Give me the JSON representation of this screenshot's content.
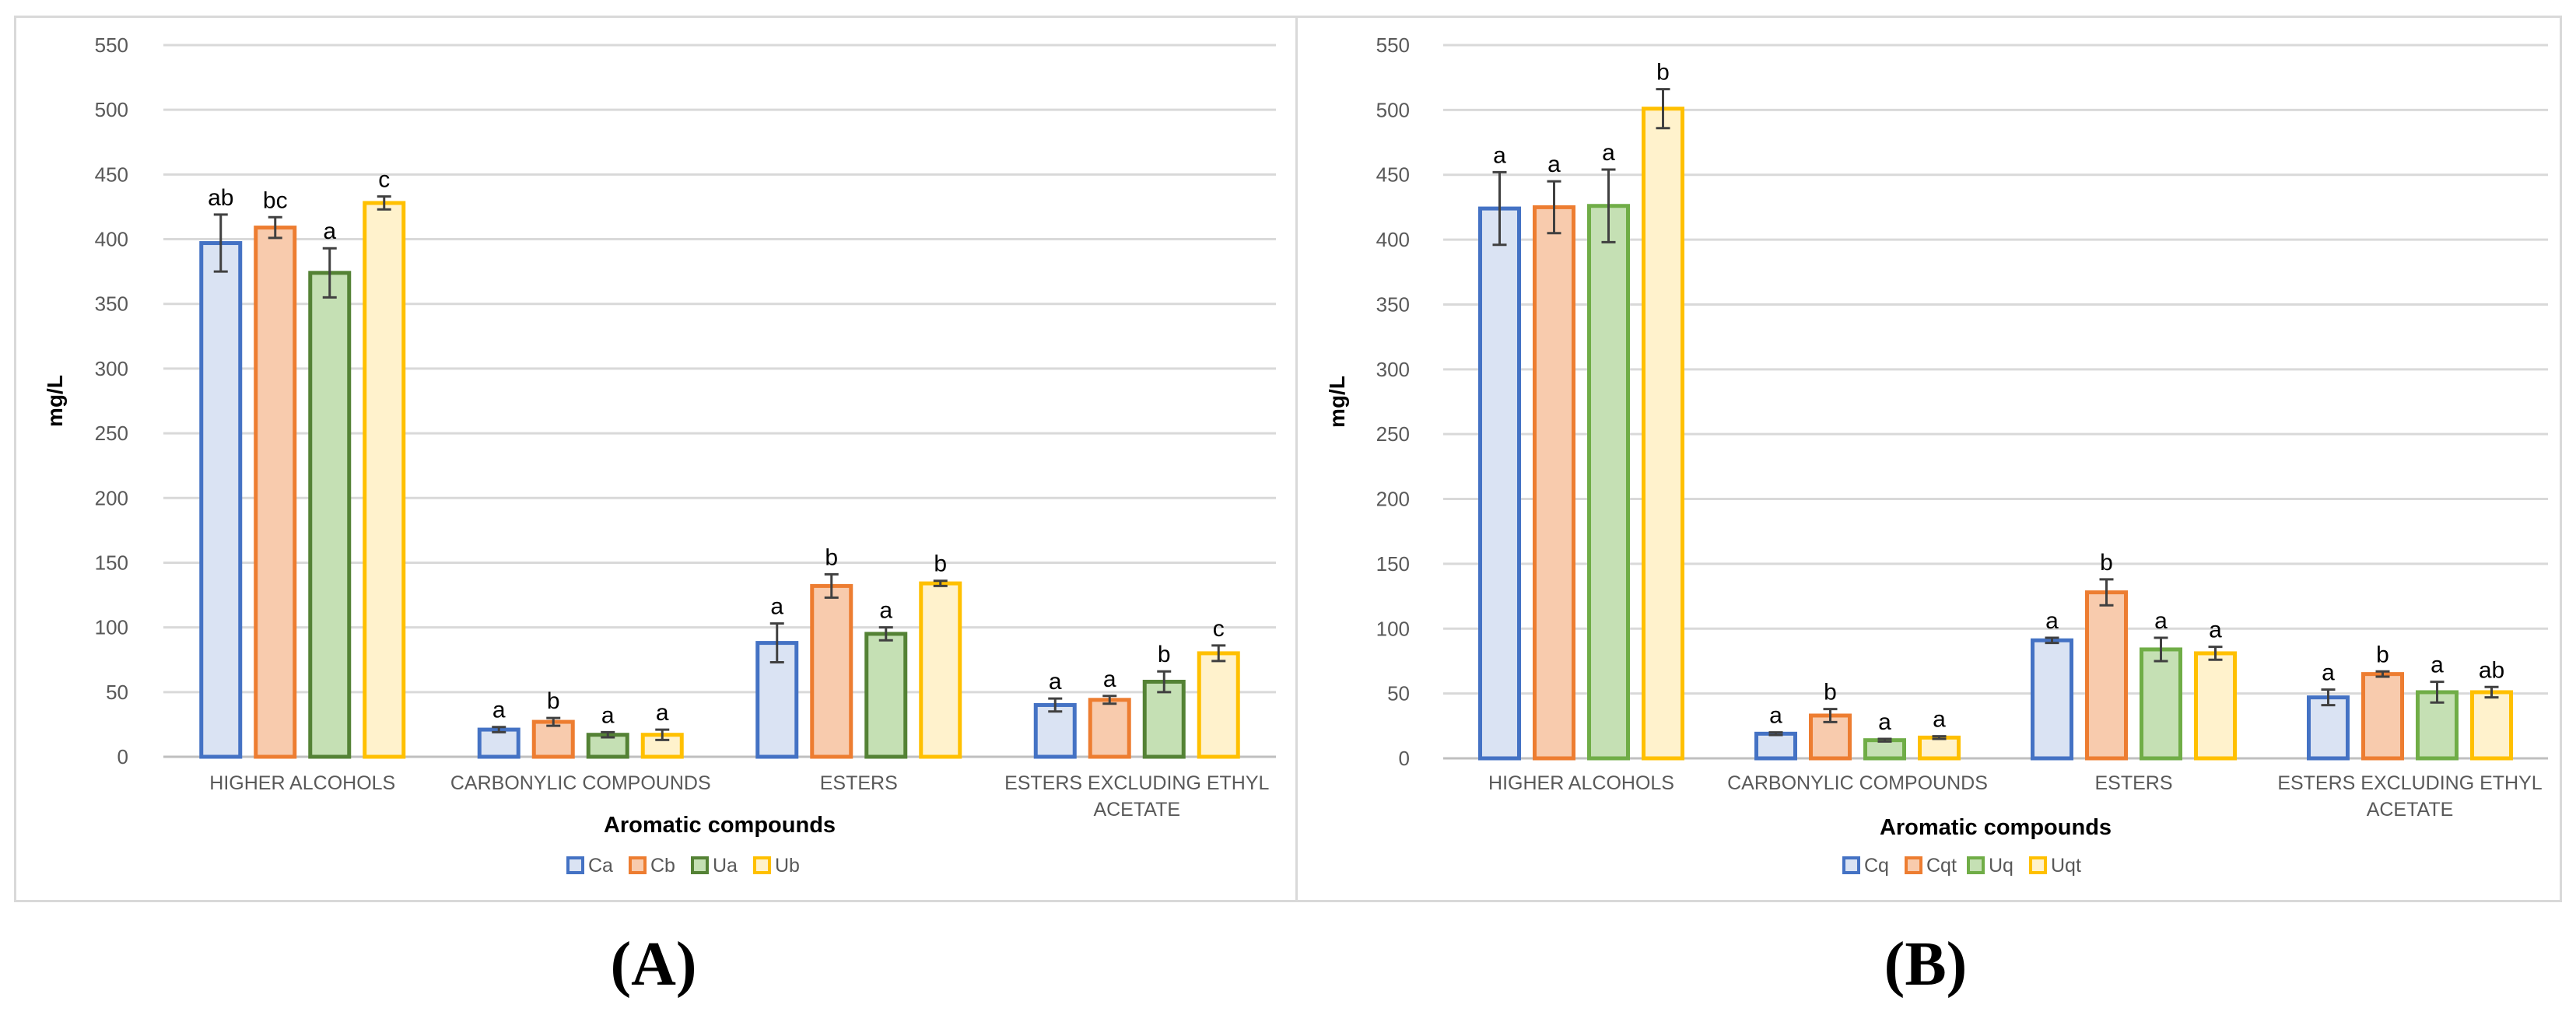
{
  "figure": {
    "panel_labels": [
      "(A)",
      "(B)"
    ]
  },
  "chart_data": [
    {
      "type": "bar",
      "panel": "(A)",
      "title": "",
      "xlabel": "Aromatic compounds",
      "ylabel": "mg/L",
      "ylim": [
        0,
        550
      ],
      "yticks": [
        0,
        50,
        100,
        150,
        200,
        250,
        300,
        350,
        400,
        450,
        500,
        550
      ],
      "grid": true,
      "legend_position": "bottom",
      "categories": [
        [
          "HIGHER ALCOHOLS"
        ],
        [
          "CARBONYLIC COMPOUNDS"
        ],
        [
          "ESTERS"
        ],
        [
          "ESTERS EXCLUDING ETHYL",
          "ACETATE"
        ]
      ],
      "series": [
        {
          "name": "Ca",
          "fill": "#dae3f3",
          "stroke": "#4472c4",
          "values": [
            397,
            21,
            88,
            40
          ],
          "errors": [
            22,
            2,
            15,
            5
          ],
          "labels": [
            "ab",
            "a",
            "a",
            "a"
          ]
        },
        {
          "name": "Cb",
          "fill": "#f8cbad",
          "stroke": "#ed7d31",
          "values": [
            409,
            27,
            132,
            44
          ],
          "errors": [
            8,
            3,
            9,
            3
          ],
          "labels": [
            "bc",
            "b",
            "b",
            "a"
          ]
        },
        {
          "name": "Ua",
          "fill": "#c5e0b4",
          "stroke": "#548235",
          "values": [
            374,
            17,
            95,
            58
          ],
          "errors": [
            19,
            2,
            5,
            8
          ],
          "labels": [
            "a",
            "a",
            "a",
            "b"
          ]
        },
        {
          "name": "Ub",
          "fill": "#fff2cc",
          "stroke": "#ffc000",
          "values": [
            428,
            17,
            134,
            80
          ],
          "errors": [
            5,
            4,
            2,
            6
          ],
          "labels": [
            "c",
            "a",
            "b",
            "c"
          ]
        }
      ]
    },
    {
      "type": "bar",
      "panel": "(B)",
      "title": "",
      "xlabel": "Aromatic compounds",
      "ylabel": "mg/L",
      "ylim": [
        0,
        550
      ],
      "yticks": [
        0,
        50,
        100,
        150,
        200,
        250,
        300,
        350,
        400,
        450,
        500,
        550
      ],
      "grid": true,
      "legend_position": "bottom",
      "categories": [
        [
          "HIGHER ALCOHOLS"
        ],
        [
          "CARBONYLIC COMPOUNDS"
        ],
        [
          "ESTERS"
        ],
        [
          "ESTERS EXCLUDING ETHYL",
          "ACETATE"
        ]
      ],
      "series": [
        {
          "name": "Cq",
          "fill": "#dae3f3",
          "stroke": "#4472c4",
          "values": [
            424,
            19,
            91,
            47
          ],
          "errors": [
            28,
            1,
            2,
            6
          ],
          "labels": [
            "a",
            "a",
            "a",
            "a"
          ]
        },
        {
          "name": "Cqt",
          "fill": "#f8cbad",
          "stroke": "#ed7d31",
          "values": [
            425,
            33,
            128,
            65
          ],
          "errors": [
            20,
            5,
            10,
            2
          ],
          "labels": [
            "a",
            "b",
            "b",
            "b"
          ]
        },
        {
          "name": "Uq",
          "fill": "#c5e0b4",
          "stroke": "#70ad47",
          "values": [
            426,
            14,
            84,
            51
          ],
          "errors": [
            28,
            1,
            9,
            8
          ],
          "labels": [
            "a",
            "a",
            "a",
            "a"
          ]
        },
        {
          "name": "Uqt",
          "fill": "#fff2cc",
          "stroke": "#ffc000",
          "values": [
            501,
            16,
            81,
            51
          ],
          "errors": [
            15,
            1,
            5,
            4
          ],
          "labels": [
            "b",
            "a",
            "a",
            "ab"
          ]
        }
      ]
    }
  ]
}
